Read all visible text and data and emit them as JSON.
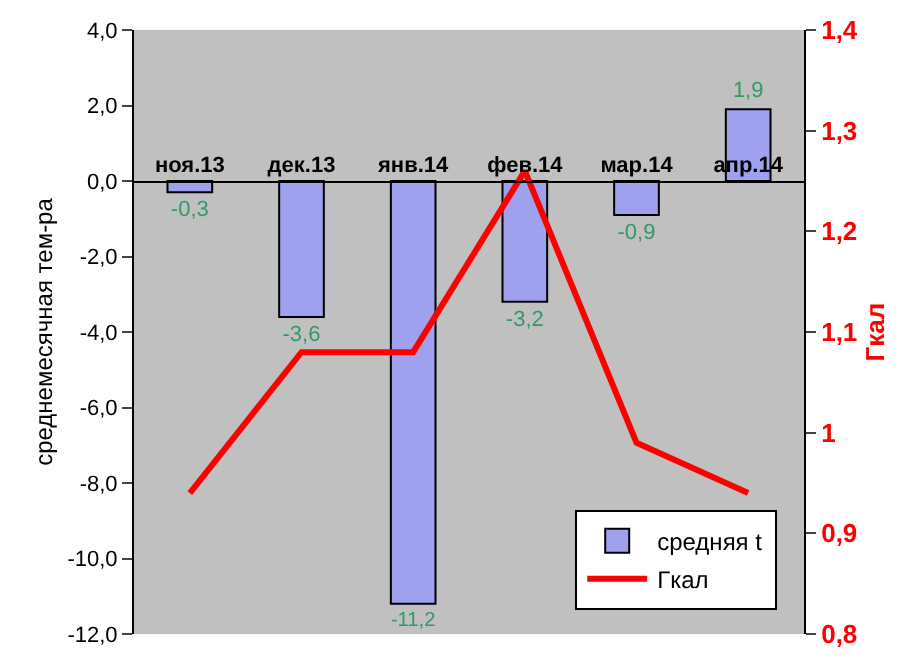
{
  "chart_data": {
    "type": "bar",
    "ylabel": "среднемесячная тем-ра",
    "y2label": "Гкал",
    "categories": [
      "ноя.13",
      "дек.13",
      "янв.14",
      "фев.14",
      "мар.14",
      "апр.14"
    ],
    "series": [
      {
        "name": "средняя t",
        "color": "#9fa0ee",
        "values": [
          -0.3,
          -3.6,
          -11.2,
          -3.2,
          -0.9,
          1.9
        ],
        "value_labels": [
          "-0,3",
          "-3,6",
          "-11,2",
          "-3,2",
          "-0,9",
          "1,9"
        ]
      },
      {
        "name": "Гкал",
        "type": "line",
        "axis": "y2",
        "color": "#ff0000",
        "values": [
          0.94,
          1.08,
          1.08,
          1.26,
          0.99,
          0.94
        ]
      }
    ],
    "ylim": [
      -12,
      4
    ],
    "yticks": [
      {
        "value": -12,
        "label": "-12,0"
      },
      {
        "value": -10,
        "label": "-10,0"
      },
      {
        "value": -8,
        "label": "-8,0"
      },
      {
        "value": -6,
        "label": "-6,0"
      },
      {
        "value": -4,
        "label": "-4,0"
      },
      {
        "value": -2,
        "label": "-2,0"
      },
      {
        "value": 0,
        "label": "0,0"
      },
      {
        "value": 2,
        "label": "2,0"
      },
      {
        "value": 4,
        "label": "4,0"
      }
    ],
    "y2lim": [
      0.8,
      1.4
    ],
    "y2ticks": [
      {
        "value": 0.8,
        "label": "0,8"
      },
      {
        "value": 0.9,
        "label": "0,9"
      },
      1,
      {
        "value": 1.1,
        "label": "1,1"
      },
      {
        "value": 1.2,
        "label": "1,2"
      },
      {
        "value": 1.3,
        "label": "1,3"
      },
      {
        "value": 1.4,
        "label": "1,4"
      }
    ],
    "legend": "bottom right",
    "grid": false,
    "marker": "none",
    "line_style": "solid"
  }
}
